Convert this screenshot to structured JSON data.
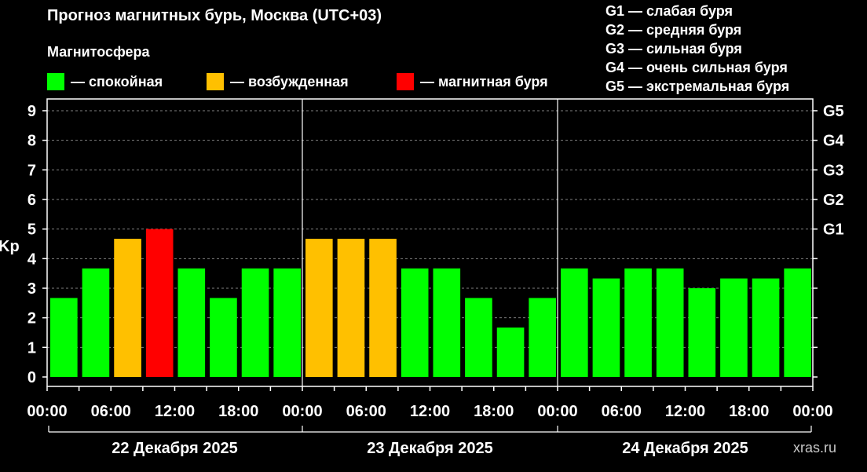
{
  "title": "Прогноз магнитных бурь, Москва (UTC+03)",
  "magnetosphere_label": "Магнитосфера",
  "legend": [
    {
      "label": "— спокойная",
      "color": "#00ff00"
    },
    {
      "label": "— возбужденная",
      "color": "#ffc000"
    },
    {
      "label": "— магнитная буря",
      "color": "#ff0000"
    }
  ],
  "g_legend": [
    "G1 — слабая буря",
    "G2 — средняя буря",
    "G3 — сильная буря",
    "G4 — очень сильная буря",
    "G5 — экстремальная буря"
  ],
  "watermark": "xras.ru",
  "chart_data": {
    "type": "bar",
    "ylabel": "Kp",
    "ylim": [
      0,
      9
    ],
    "yticks": [
      "0",
      "1",
      "2",
      "3",
      "4",
      "5",
      "6",
      "7",
      "8",
      "9"
    ],
    "right_ticks": [
      {
        "value": 5,
        "label": "G1"
      },
      {
        "value": 6,
        "label": "G2"
      },
      {
        "value": 7,
        "label": "G3"
      },
      {
        "value": 8,
        "label": "G4"
      },
      {
        "value": 9,
        "label": "G5"
      }
    ],
    "grid": true,
    "xtick_labels": [
      "00:00",
      "06:00",
      "12:00",
      "18:00",
      "00:00",
      "06:00",
      "12:00",
      "18:00",
      "00:00",
      "06:00",
      "12:00",
      "18:00",
      "00:00"
    ],
    "days": [
      "22 Декабря 2025",
      "23 Декабря 2025",
      "24 Декабря 2025"
    ],
    "values": [
      2.67,
      3.67,
      4.67,
      5.0,
      3.67,
      2.67,
      3.67,
      3.67,
      4.67,
      4.67,
      4.67,
      3.67,
      3.67,
      2.67,
      1.67,
      2.67,
      3.67,
      3.33,
      3.67,
      3.67,
      3.0,
      3.33,
      3.33,
      3.67
    ],
    "colors": {
      "quiet": "#00ff00",
      "active": "#ffc000",
      "storm": "#ff0000"
    }
  }
}
